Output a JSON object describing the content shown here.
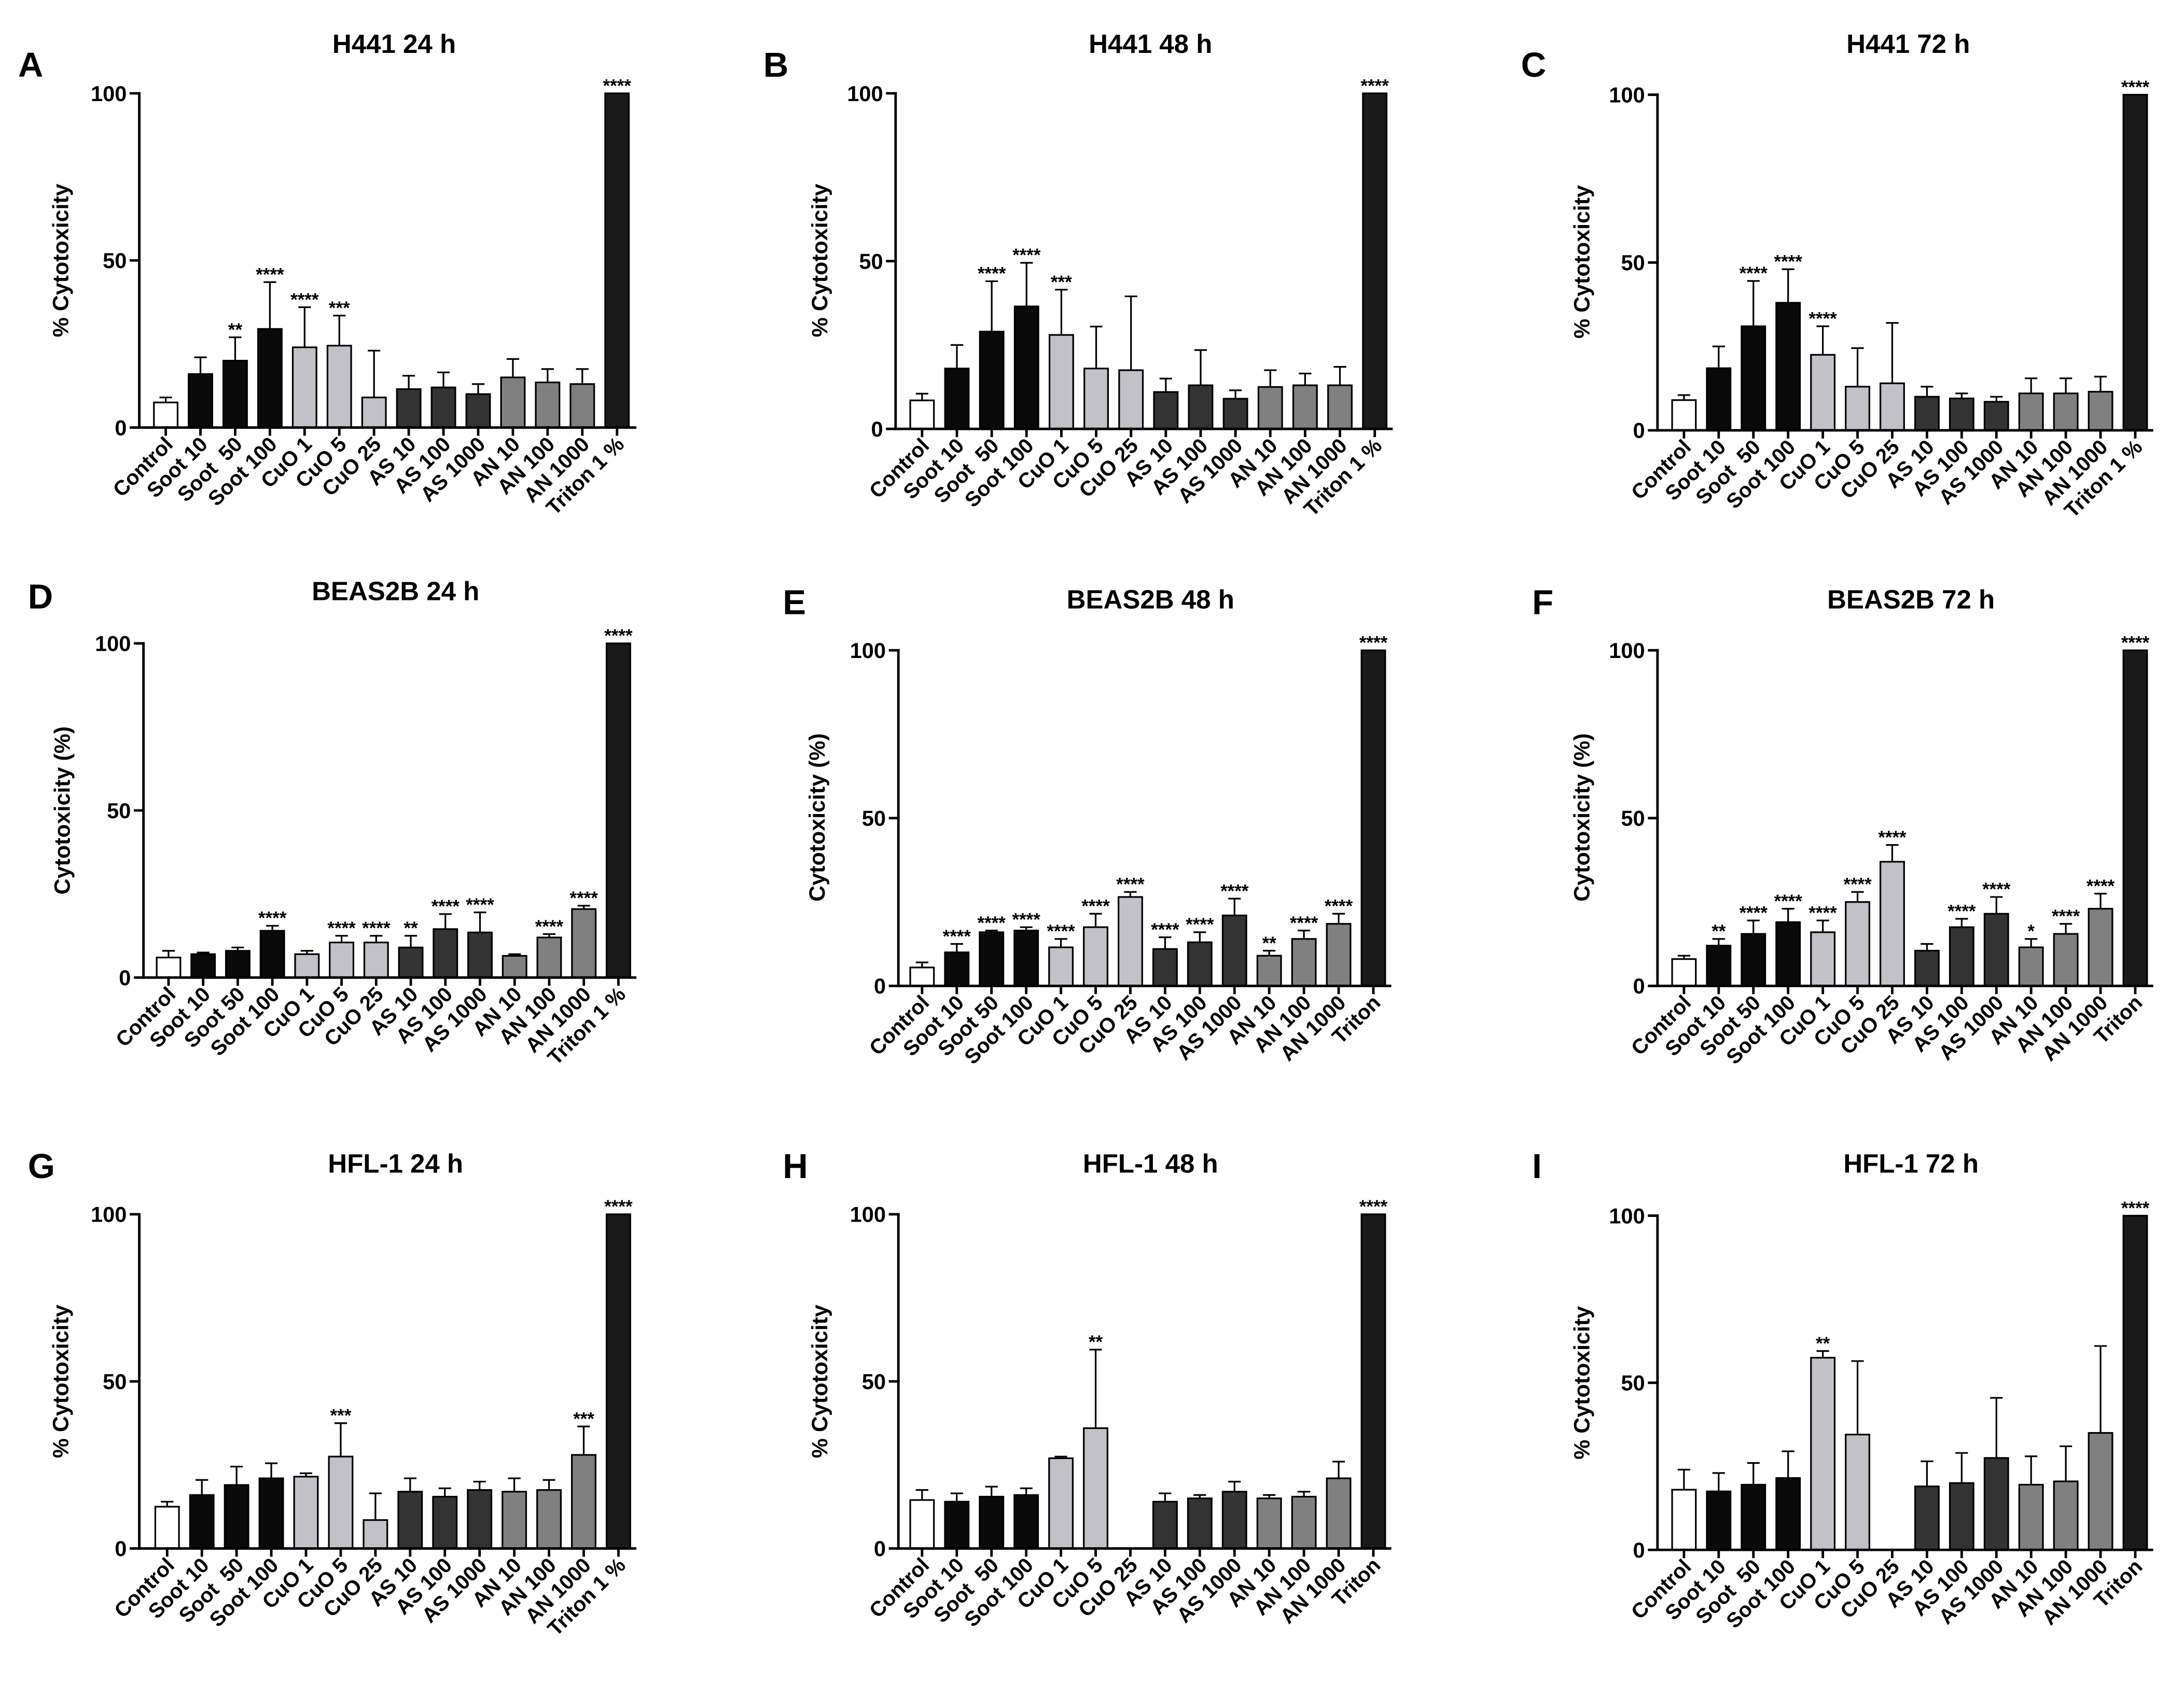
{
  "style": {
    "background": "#ffffff",
    "axis_color": "#000000",
    "text_color": "#000000",
    "bar_stroke": "#000000",
    "bar_fill": [
      "#ffffff",
      "#0a0a0a",
      "#0a0a0a",
      "#0a0a0a",
      "#c2c1c7",
      "#c2c1c7",
      "#c2c1c7",
      "#333333",
      "#333333",
      "#333333",
      "#808080",
      "#808080",
      "#808080",
      "#1a1a1a"
    ]
  },
  "chart_data": [
    {
      "panel": "A",
      "type": "bar",
      "title": "H441 24 h",
      "ylabel": "% Cytotoxicity",
      "ylim": [
        0,
        100
      ],
      "yticks": [
        0,
        50,
        100
      ],
      "grid": false,
      "categories": [
        "Control",
        "Soot 10",
        "Soot  50",
        "Soot 100",
        "CuO 1",
        "CuO 5",
        "CuO 25",
        "AS 10",
        "AS 100",
        "AS 1000",
        "AN 10",
        "AN 100",
        "AN 1000",
        "Triton 1 %"
      ],
      "values": [
        7.5,
        16,
        20,
        29.5,
        24,
        24.5,
        9,
        11.5,
        12,
        10,
        15,
        13.5,
        13,
        100
      ],
      "error": [
        1.5,
        5,
        7,
        14,
        12,
        9,
        14,
        4,
        4.5,
        3,
        5.5,
        4,
        4.5,
        0
      ],
      "significance": [
        "",
        "",
        "**",
        "****",
        "****",
        "***",
        "",
        "",
        "",
        "",
        "",
        "",
        "",
        "****"
      ]
    },
    {
      "panel": "B",
      "type": "bar",
      "title": "H441 48 h",
      "ylabel": "% Cytotoxicity",
      "ylim": [
        0,
        100
      ],
      "yticks": [
        0,
        50,
        100
      ],
      "grid": false,
      "categories": [
        "Control",
        "Soot 10",
        "Soot  50",
        "Soot 100",
        "CuO 1",
        "CuO 5",
        "CuO 25",
        "AS 10",
        "AS 100",
        "AS 1000",
        "AN 10",
        "AN 100",
        "AN 1000",
        "Triton 1 %"
      ],
      "values": [
        8.5,
        18,
        29,
        36.5,
        28,
        18,
        17.5,
        11,
        13,
        9,
        12.5,
        13,
        13,
        100
      ],
      "error": [
        2,
        7,
        15,
        13,
        13.5,
        12.5,
        22,
        4,
        10.5,
        2.5,
        5,
        3.5,
        5.5,
        0
      ],
      "significance": [
        "",
        "",
        "****",
        "****",
        "***",
        "",
        "",
        "",
        "",
        "",
        "",
        "",
        "",
        "****"
      ]
    },
    {
      "panel": "C",
      "type": "bar",
      "title": "H441 72 h",
      "ylabel": "% Cytotoxicity",
      "ylim": [
        0,
        100
      ],
      "yticks": [
        0,
        50,
        100
      ],
      "grid": false,
      "categories": [
        "Control",
        "Soot 10",
        "Soot  50",
        "Soot 100",
        "CuO 1",
        "CuO 5",
        "CuO 25",
        "AS 10",
        "AS 100",
        "AS 1000",
        "AN 10",
        "AN 100",
        "AN 1000",
        "Triton 1 %"
      ],
      "values": [
        9,
        18.5,
        31,
        38,
        22.5,
        13,
        14,
        10,
        9.5,
        8.5,
        11,
        11,
        11.5,
        100
      ],
      "error": [
        1.5,
        6.5,
        13.5,
        10,
        8.5,
        11.5,
        18,
        3,
        1.5,
        1.5,
        4.5,
        4.5,
        4.5,
        0
      ],
      "significance": [
        "",
        "",
        "****",
        "****",
        "****",
        "",
        "",
        "",
        "",
        "",
        "",
        "",
        "",
        "****"
      ]
    },
    {
      "panel": "D",
      "type": "bar",
      "title": "BEAS2B 24 h",
      "ylabel": "Cytotoxicity (%)",
      "ylim": [
        0,
        100
      ],
      "yticks": [
        0,
        50,
        100
      ],
      "grid": false,
      "categories": [
        "Control",
        "Soot 10",
        "Soot 50",
        "Soot 100",
        "CuO 1",
        "CuO 5",
        "CuO 25",
        "AS 10",
        "AS 100",
        "AS 1000",
        "AN 10",
        "AN 100",
        "AN 1000",
        "Triton 1 %"
      ],
      "values": [
        6,
        7,
        8,
        14,
        7,
        10.5,
        10.5,
        9,
        14.5,
        13.5,
        6.5,
        12,
        20.5,
        100
      ],
      "error": [
        2,
        0.5,
        1,
        1.5,
        1,
        2,
        2,
        3.5,
        4.5,
        6,
        0.5,
        1,
        1,
        0
      ],
      "significance": [
        "",
        "",
        "",
        "****",
        "",
        "****",
        "****",
        "**",
        "****",
        "****",
        "",
        "****",
        "****",
        "****"
      ]
    },
    {
      "panel": "E",
      "type": "bar",
      "title": "BEAS2B 48 h",
      "ylabel": "Cytotoxicity (%)",
      "ylim": [
        0,
        100
      ],
      "yticks": [
        0,
        50,
        100
      ],
      "grid": false,
      "categories": [
        "Control",
        "Soot 10",
        "Soot 50",
        "Soot 100",
        "CuO 1",
        "CuO 5",
        "CuO 25",
        "AS 10",
        "AS 100",
        "AS 1000",
        "AN 10",
        "AN 100",
        "AN 1000",
        "Triton"
      ],
      "values": [
        5.5,
        10,
        16,
        16.5,
        11.5,
        17.5,
        26.5,
        11,
        13,
        21,
        9,
        14,
        18.5,
        100
      ],
      "error": [
        1.5,
        2.5,
        0.5,
        1,
        2.5,
        4,
        1.5,
        3.5,
        3,
        5,
        1.5,
        2.5,
        3,
        0
      ],
      "significance": [
        "",
        "****",
        "****",
        "****",
        "****",
        "****",
        "****",
        "****",
        "****",
        "****",
        "**",
        "****",
        "****",
        "****"
      ]
    },
    {
      "panel": "F",
      "type": "bar",
      "title": "BEAS2B 72 h",
      "ylabel": "Cytotoxicity (%)",
      "ylim": [
        0,
        100
      ],
      "yticks": [
        0,
        50,
        100
      ],
      "grid": false,
      "categories": [
        "Control",
        "Soot 10",
        "Soot 50",
        "Soot 100",
        "CuO 1",
        "CuO 5",
        "CuO 25",
        "AS 10",
        "AS 100",
        "AS 1000",
        "AN 10",
        "AN 100",
        "AN 1000",
        "Triton"
      ],
      "values": [
        8,
        12,
        15.5,
        19,
        16,
        25,
        37,
        10.5,
        17.5,
        21.5,
        11.5,
        15.5,
        23,
        100
      ],
      "error": [
        1,
        2,
        4,
        4,
        3.5,
        3,
        5,
        2,
        2.5,
        5,
        2.5,
        3,
        4.5,
        0
      ],
      "significance": [
        "",
        "**",
        "****",
        "****",
        "****",
        "****",
        "****",
        "",
        "****",
        "****",
        "*",
        "****",
        "****",
        "****"
      ]
    },
    {
      "panel": "G",
      "type": "bar",
      "title": "HFL-1 24 h",
      "ylabel": "% Cytotoxicity",
      "ylim": [
        0,
        100
      ],
      "yticks": [
        0,
        50,
        100
      ],
      "grid": false,
      "categories": [
        "Control",
        "Soot 10",
        "Soot  50",
        "Soot 100",
        "CuO 1",
        "CuO 5",
        "CuO 25",
        "AS 10",
        "AS 100",
        "AS 1000",
        "AN 10",
        "AN 100",
        "AN 1000",
        "Triton 1 %"
      ],
      "values": [
        12.5,
        16,
        19,
        21,
        21.5,
        27.5,
        8.5,
        17,
        15.5,
        17.5,
        17,
        17.5,
        28,
        100
      ],
      "error": [
        1.5,
        4.5,
        5.5,
        4.5,
        1,
        10,
        8,
        4,
        2.5,
        2.5,
        4,
        3,
        8.5,
        0
      ],
      "significance": [
        "",
        "",
        "",
        "",
        "",
        "***",
        "",
        "",
        "",
        "",
        "",
        "",
        "***",
        "****"
      ]
    },
    {
      "panel": "H",
      "type": "bar",
      "title": "HFL-1 48 h",
      "ylabel": "% Cytotoxicity",
      "ylim": [
        0,
        100
      ],
      "yticks": [
        0,
        50,
        100
      ],
      "grid": false,
      "categories": [
        "Control",
        "Soot 10",
        "Soot  50",
        "Soot 100",
        "CuO 1",
        "CuO 5",
        "CuO 25",
        "AS 10",
        "AS 100",
        "AS 1000",
        "AN 10",
        "AN 100",
        "AN 1000",
        "Triton"
      ],
      "values": [
        14.5,
        14,
        15.5,
        16,
        27,
        36,
        0,
        14,
        15,
        17,
        15,
        15.5,
        21,
        100
      ],
      "error": [
        3,
        2.5,
        3,
        2,
        0.5,
        23.5,
        0,
        2.5,
        1,
        3,
        1,
        1.5,
        5,
        0
      ],
      "significance": [
        "",
        "",
        "",
        "",
        "",
        "**",
        "",
        "",
        "",
        "",
        "",
        "",
        "",
        "****"
      ]
    },
    {
      "panel": "I",
      "type": "bar",
      "title": "HFL-1 72 h",
      "ylabel": "% Cytotoxicity",
      "ylim": [
        0,
        100
      ],
      "yticks": [
        0,
        50,
        100
      ],
      "grid": false,
      "categories": [
        "Control",
        "Soot 10",
        "Soot  50",
        "Soot 100",
        "CuO 1",
        "CuO 5",
        "CuO 25",
        "AS 10",
        "AS 100",
        "AS 1000",
        "AN 10",
        "AN 100",
        "AN 1000",
        "Triton"
      ],
      "values": [
        18,
        17.5,
        19.5,
        21.5,
        57.5,
        34.5,
        0,
        19,
        20,
        27.5,
        19.5,
        20.5,
        35,
        100
      ],
      "error": [
        6,
        5.5,
        6.5,
        8,
        2,
        22,
        0,
        7.5,
        9,
        18,
        8.5,
        10.5,
        26,
        0
      ],
      "significance": [
        "",
        "",
        "",
        "",
        "**",
        "",
        "",
        "",
        "",
        "",
        "",
        "",
        "",
        "****"
      ]
    }
  ]
}
